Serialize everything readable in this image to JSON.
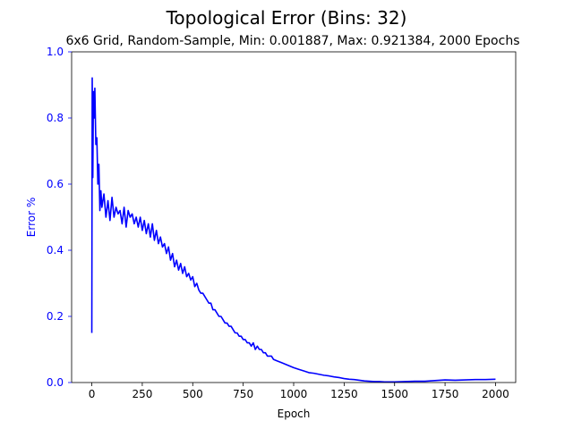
{
  "chart_data": {
    "type": "line",
    "title": "Topological Error (Bins: 32)",
    "subtitle": "6x6 Grid, Random-Sample, Min: 0.001887, Max: 0.921384, 2000 Epochs",
    "xlabel": "Epoch",
    "ylabel": "Error %",
    "xlim": [
      -100,
      2100
    ],
    "ylim": [
      0,
      1.0
    ],
    "x_ticks": [
      0,
      250,
      500,
      750,
      1000,
      1250,
      1500,
      1750,
      2000
    ],
    "x_tick_labels": [
      "0",
      "250",
      "500",
      "750",
      "1000",
      "1250",
      "1500",
      "1750",
      "2000"
    ],
    "y_ticks": [
      0.0,
      0.2,
      0.4,
      0.6,
      0.8,
      1.0
    ],
    "y_tick_labels": [
      "0.0",
      "0.2",
      "0.4",
      "0.6",
      "0.8",
      "1.0"
    ],
    "grid": false,
    "series": [
      {
        "color": "#0000ff",
        "x": [
          0,
          2,
          5,
          8,
          12,
          15,
          20,
          25,
          30,
          35,
          40,
          45,
          50,
          60,
          70,
          80,
          90,
          100,
          110,
          120,
          130,
          140,
          150,
          160,
          170,
          180,
          190,
          200,
          210,
          220,
          230,
          240,
          250,
          260,
          270,
          280,
          290,
          300,
          310,
          320,
          330,
          340,
          350,
          360,
          370,
          380,
          390,
          400,
          410,
          420,
          430,
          440,
          450,
          460,
          470,
          480,
          490,
          500,
          510,
          520,
          530,
          540,
          550,
          560,
          570,
          580,
          590,
          600,
          610,
          620,
          630,
          640,
          650,
          660,
          670,
          680,
          690,
          700,
          710,
          720,
          730,
          740,
          750,
          760,
          770,
          780,
          790,
          800,
          810,
          820,
          830,
          840,
          850,
          860,
          870,
          880,
          890,
          900,
          920,
          940,
          960,
          980,
          1000,
          1025,
          1050,
          1075,
          1100,
          1125,
          1150,
          1175,
          1200,
          1225,
          1250,
          1275,
          1300,
          1325,
          1350,
          1375,
          1400,
          1425,
          1450,
          1475,
          1500,
          1550,
          1600,
          1650,
          1700,
          1750,
          1800,
          1850,
          1900,
          1950,
          2000
        ],
        "y": [
          0.15,
          0.921,
          0.62,
          0.88,
          0.8,
          0.89,
          0.72,
          0.74,
          0.6,
          0.66,
          0.52,
          0.58,
          0.53,
          0.57,
          0.5,
          0.55,
          0.49,
          0.56,
          0.5,
          0.53,
          0.51,
          0.52,
          0.48,
          0.53,
          0.47,
          0.52,
          0.5,
          0.51,
          0.48,
          0.5,
          0.47,
          0.5,
          0.46,
          0.49,
          0.45,
          0.48,
          0.44,
          0.48,
          0.43,
          0.46,
          0.42,
          0.44,
          0.41,
          0.42,
          0.39,
          0.41,
          0.37,
          0.39,
          0.35,
          0.37,
          0.34,
          0.36,
          0.33,
          0.35,
          0.32,
          0.33,
          0.31,
          0.32,
          0.29,
          0.3,
          0.28,
          0.27,
          0.27,
          0.26,
          0.25,
          0.24,
          0.24,
          0.22,
          0.22,
          0.21,
          0.2,
          0.2,
          0.19,
          0.18,
          0.18,
          0.17,
          0.17,
          0.16,
          0.15,
          0.15,
          0.14,
          0.14,
          0.13,
          0.13,
          0.12,
          0.12,
          0.11,
          0.12,
          0.1,
          0.11,
          0.1,
          0.1,
          0.09,
          0.09,
          0.08,
          0.08,
          0.08,
          0.07,
          0.065,
          0.06,
          0.055,
          0.05,
          0.045,
          0.04,
          0.035,
          0.03,
          0.028,
          0.025,
          0.022,
          0.02,
          0.017,
          0.015,
          0.012,
          0.01,
          0.009,
          0.007,
          0.005,
          0.004,
          0.003,
          0.003,
          0.002,
          0.002,
          0.002,
          0.003,
          0.004,
          0.004,
          0.006,
          0.008,
          0.007,
          0.008,
          0.009,
          0.009,
          0.01
        ]
      }
    ]
  }
}
